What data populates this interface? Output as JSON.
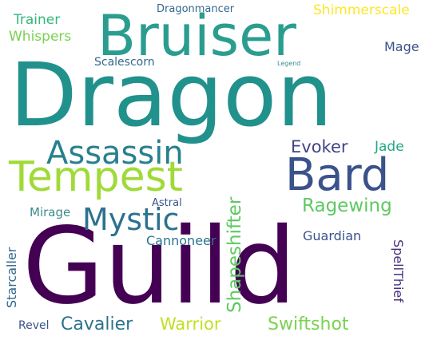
{
  "words": [
    {
      "id": "guild",
      "text": "Guild",
      "color": "#440154"
    },
    {
      "id": "dragon",
      "text": "Dragon",
      "color": "#21918c"
    },
    {
      "id": "bruiser",
      "text": "Bruiser",
      "color": "#2a9d8f"
    },
    {
      "id": "tempest",
      "text": "Tempest",
      "color": "#a0da39"
    },
    {
      "id": "bard",
      "text": "Bard",
      "color": "#3b528b"
    },
    {
      "id": "assassin",
      "text": "Assassin",
      "color": "#27808e"
    },
    {
      "id": "mystic",
      "text": "Mystic",
      "color": "#2c728e"
    },
    {
      "id": "ragewing",
      "text": "Ragewing",
      "color": "#5ec962"
    },
    {
      "id": "evoker",
      "text": "Evoker",
      "color": "#414487"
    },
    {
      "id": "jade",
      "text": "Jade",
      "color": "#22a884"
    },
    {
      "id": "shapeshifter",
      "text": "Shapeshifter",
      "color": "#5ec962"
    },
    {
      "id": "guardian",
      "text": "Guardian",
      "color": "#3b528b"
    },
    {
      "id": "cannoneer",
      "text": "Cannoneer",
      "color": "#2c728e"
    },
    {
      "id": "mirage",
      "text": "Mirage",
      "color": "#3b8c8c"
    },
    {
      "id": "astral",
      "text": "Astral",
      "color": "#3b528b"
    },
    {
      "id": "starcaller",
      "text": "Starcaller",
      "color": "#31688e"
    },
    {
      "id": "spellthief",
      "text": "SpellThief",
      "color": "#46327e"
    },
    {
      "id": "revel",
      "text": "Revel",
      "color": "#3b528b"
    },
    {
      "id": "cavalier",
      "text": "Cavalier",
      "color": "#2c728e"
    },
    {
      "id": "warrior",
      "text": "Warrior",
      "color": "#c2df23"
    },
    {
      "id": "swiftshot",
      "text": "Swiftshot",
      "color": "#7ad151"
    },
    {
      "id": "trainer",
      "text": "Trainer",
      "color": "#35b779"
    },
    {
      "id": "whispers",
      "text": "Whispers",
      "color": "#7ad151"
    },
    {
      "id": "dragonmancer",
      "text": "Dragonmancer",
      "color": "#31688e"
    },
    {
      "id": "shimmerscale",
      "text": "Shimmerscale",
      "color": "#fde725"
    },
    {
      "id": "mage",
      "text": "Mage",
      "color": "#3b528b"
    },
    {
      "id": "scalescorn",
      "text": "Scalescorn",
      "color": "#31688e"
    },
    {
      "id": "legend",
      "text": "Legend",
      "color": "#3b8c8c"
    }
  ]
}
